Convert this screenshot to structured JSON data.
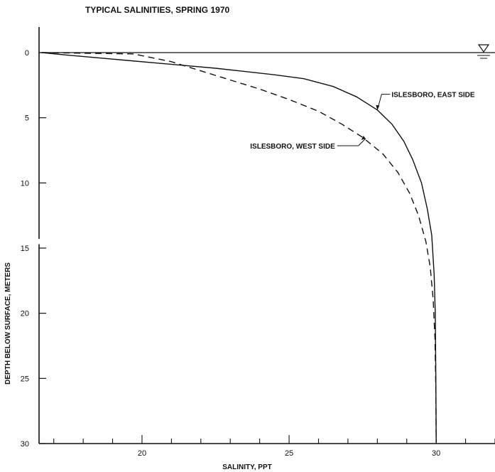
{
  "chart_data": {
    "type": "line",
    "title": "TYPICAL  SALINITIES,  SPRING 1970",
    "xlabel": "SALINITY,  PPT",
    "ylabel": "DEPTH BELOW SURFACE, METERS",
    "xlim": [
      16.5,
      32
    ],
    "ylim": [
      0,
      30
    ],
    "y_inverted": true,
    "x_ticks": [
      20,
      25,
      30
    ],
    "y_ticks": [
      0,
      5,
      10,
      15,
      20,
      25,
      30
    ],
    "grid": false,
    "water_surface_symbol": "triangle-water-surface",
    "series": [
      {
        "name": "ISLESBORO, EAST SIDE",
        "style": "solid",
        "points": [
          [
            16.6,
            0.0
          ],
          [
            17.5,
            0.2
          ],
          [
            18.5,
            0.4
          ],
          [
            19.5,
            0.6
          ],
          [
            20.5,
            0.8
          ],
          [
            21.5,
            1.0
          ],
          [
            22.5,
            1.2
          ],
          [
            23.5,
            1.45
          ],
          [
            24.5,
            1.7
          ],
          [
            25.5,
            2.0
          ],
          [
            26.5,
            2.6
          ],
          [
            27.3,
            3.4
          ],
          [
            28.0,
            4.4
          ],
          [
            28.5,
            5.5
          ],
          [
            28.9,
            6.8
          ],
          [
            29.2,
            8.2
          ],
          [
            29.5,
            10.0
          ],
          [
            29.7,
            12.0
          ],
          [
            29.85,
            14.0
          ],
          [
            29.93,
            17.0
          ],
          [
            29.97,
            20.0
          ],
          [
            29.99,
            25.0
          ],
          [
            30.0,
            30.0
          ]
        ]
      },
      {
        "name": "ISLESBORO, WEST SIDE",
        "style": "dashed",
        "points": [
          [
            16.6,
            0.0
          ],
          [
            18.0,
            0.05
          ],
          [
            19.7,
            0.1
          ],
          [
            21.0,
            0.7
          ],
          [
            22.0,
            1.4
          ],
          [
            23.0,
            2.1
          ],
          [
            24.0,
            2.8
          ],
          [
            25.0,
            3.6
          ],
          [
            26.0,
            4.5
          ],
          [
            26.8,
            5.5
          ],
          [
            27.5,
            6.5
          ],
          [
            28.2,
            7.8
          ],
          [
            28.7,
            9.2
          ],
          [
            29.1,
            10.8
          ],
          [
            29.4,
            12.5
          ],
          [
            29.65,
            14.5
          ],
          [
            29.8,
            16.5
          ],
          [
            29.9,
            19.0
          ],
          [
            29.96,
            22.0
          ],
          [
            29.99,
            26.0
          ],
          [
            30.0,
            30.0
          ]
        ]
      }
    ],
    "annotations": [
      {
        "text": "ISLESBORO, EAST SIDE",
        "series": 0,
        "at": [
          28.0,
          4.4
        ],
        "place": "right"
      },
      {
        "text": "ISLESBORO, WEST SIDE",
        "series": 1,
        "at": [
          27.6,
          6.6
        ],
        "place": "left"
      }
    ]
  }
}
